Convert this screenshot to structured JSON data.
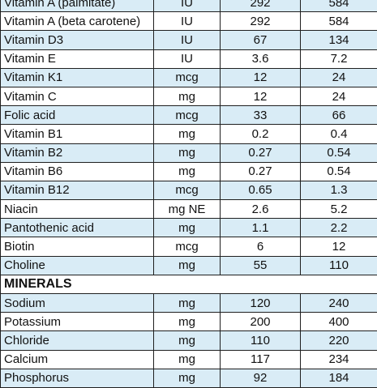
{
  "table": {
    "rows_before": [
      {
        "name": "Vitamin A (palmitate)",
        "unit": "IU",
        "v1": "292",
        "v2": "584",
        "alt": true
      },
      {
        "name": "Vitamin A (beta carotene)",
        "unit": "IU",
        "v1": "292",
        "v2": "584",
        "alt": false
      },
      {
        "name": "Vitamin D3",
        "unit": "IU",
        "v1": "67",
        "v2": "134",
        "alt": true
      },
      {
        "name": "Vitamin E",
        "unit": "IU",
        "v1": "3.6",
        "v2": "7.2",
        "alt": false
      },
      {
        "name": "Vitamin K1",
        "unit": "mcg",
        "v1": "12",
        "v2": "24",
        "alt": true
      },
      {
        "name": "Vitamin C",
        "unit": "mg",
        "v1": "12",
        "v2": "24",
        "alt": false
      },
      {
        "name": "Folic acid",
        "unit": "mcg",
        "v1": "33",
        "v2": "66",
        "alt": true
      },
      {
        "name": "Vitamin B1",
        "unit": "mg",
        "v1": "0.2",
        "v2": "0.4",
        "alt": false
      },
      {
        "name": "Vitamin B2",
        "unit": "mg",
        "v1": "0.27",
        "v2": "0.54",
        "alt": true
      },
      {
        "name": "Vitamin B6",
        "unit": "mg",
        "v1": "0.27",
        "v2": "0.54",
        "alt": false
      },
      {
        "name": "Vitamin B12",
        "unit": "mcg",
        "v1": "0.65",
        "v2": "1.3",
        "alt": true
      },
      {
        "name": "Niacin",
        "unit": "mg NE",
        "v1": "2.6",
        "v2": "5.2",
        "alt": false
      },
      {
        "name": "Pantothenic acid",
        "unit": "mg",
        "v1": "1.1",
        "v2": "2.2",
        "alt": true
      },
      {
        "name": "Biotin",
        "unit": "mcg",
        "v1": "6",
        "v2": "12",
        "alt": false
      },
      {
        "name": "Choline",
        "unit": "mg",
        "v1": "55",
        "v2": "110",
        "alt": true
      }
    ],
    "section_title": "MINERALS",
    "rows_after": [
      {
        "name": "Sodium",
        "unit": "mg",
        "v1": "120",
        "v2": "240",
        "alt": true
      },
      {
        "name": "Potassium",
        "unit": "mg",
        "v1": "200",
        "v2": "400",
        "alt": false
      },
      {
        "name": "Chloride",
        "unit": "mg",
        "v1": "110",
        "v2": "220",
        "alt": true
      },
      {
        "name": "Calcium",
        "unit": "mg",
        "v1": "117",
        "v2": "234",
        "alt": false
      },
      {
        "name": "Phosphorus",
        "unit": "mg",
        "v1": "92",
        "v2": "184",
        "alt": true
      }
    ]
  }
}
